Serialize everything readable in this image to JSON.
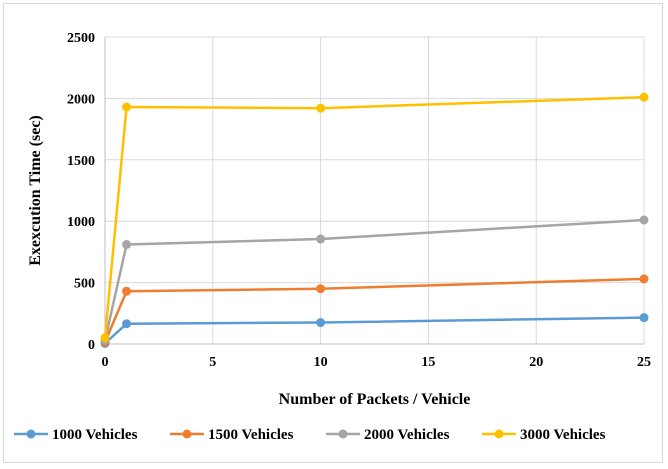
{
  "chart_data": {
    "type": "line",
    "title": "",
    "xlabel": "Number of Packets / Vehicle",
    "ylabel": "Exexcution Time (sec)",
    "x": [
      0,
      1,
      10,
      25
    ],
    "xlim": [
      0,
      25
    ],
    "ylim": [
      0,
      2500
    ],
    "x_ticks": [
      0,
      5,
      10,
      15,
      20,
      25
    ],
    "y_ticks": [
      0,
      500,
      1000,
      1500,
      2000,
      2500
    ],
    "grid": true,
    "legend_position": "bottom",
    "series": [
      {
        "name": "1000 Vehicles",
        "color": "#5b9bd5",
        "values": [
          5,
          165,
          175,
          215
        ]
      },
      {
        "name": "1500 Vehicles",
        "color": "#ed7d31",
        "values": [
          15,
          430,
          450,
          530
        ]
      },
      {
        "name": "2000 Vehicles",
        "color": "#a5a5a5",
        "values": [
          30,
          810,
          855,
          1010
        ]
      },
      {
        "name": "3000 Vehicles",
        "color": "#ffc000",
        "values": [
          50,
          1930,
          1920,
          2010
        ]
      }
    ]
  }
}
